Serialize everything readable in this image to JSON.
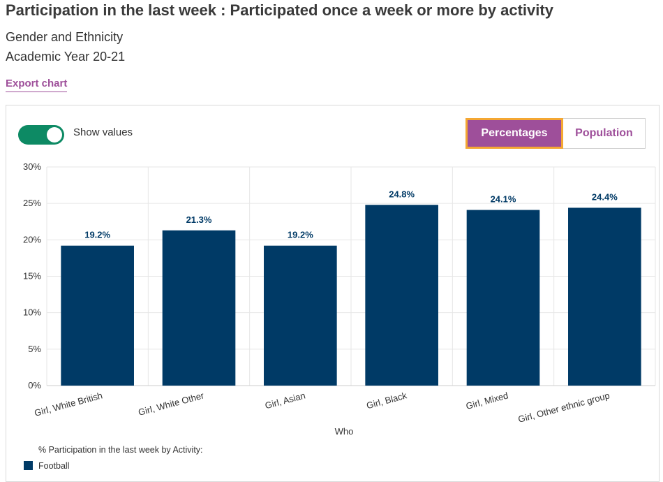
{
  "page": {
    "title": "Participation in the last week : Participated once a week or more by activity",
    "subtitle_1": "Gender and Ethnicity",
    "subtitle_2": "Academic Year 20-21",
    "export_label": "Export chart"
  },
  "controls": {
    "show_values_label": "Show values",
    "show_values_on": true,
    "view_options": [
      "Percentages",
      "Population"
    ],
    "selected_view": "Percentages"
  },
  "colors": {
    "bar": "#003a66",
    "accent": "#9e4f9a",
    "toggle": "#0d8a64",
    "focus": "#f4a733"
  },
  "chart_data": {
    "type": "bar",
    "categories": [
      "Girl, White British",
      "Girl, White Other",
      "Girl, Asian",
      "Girl, Black",
      "Girl, Mixed",
      "Girl, Other ethnic group"
    ],
    "series": [
      {
        "name": "Football",
        "values": [
          19.2,
          21.3,
          19.2,
          24.8,
          24.1,
          24.4
        ]
      }
    ],
    "value_labels": [
      "19.2%",
      "21.3%",
      "19.2%",
      "24.8%",
      "24.1%",
      "24.4%"
    ],
    "xlabel": "Who",
    "ylabel": "",
    "ylim": [
      0,
      30
    ],
    "y_ticks": [
      "0%",
      "5%",
      "10%",
      "15%",
      "20%",
      "25%",
      "30%"
    ],
    "legend_title": "% Participation in the last week by Activity:",
    "legend_position": "bottom-left",
    "grid": true
  }
}
